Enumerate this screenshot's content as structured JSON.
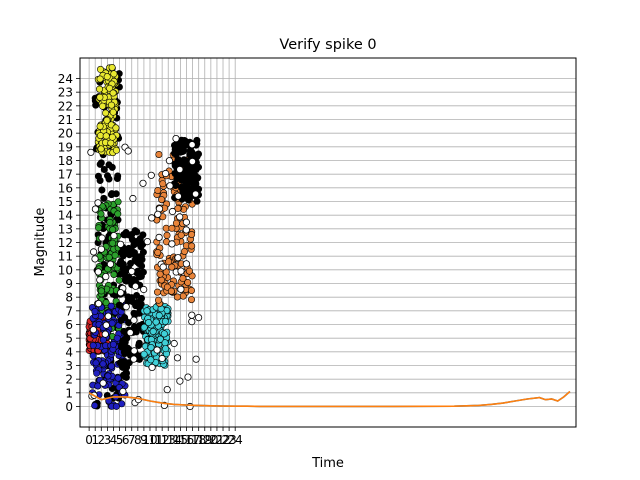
{
  "chart_data": {
    "type": "scatter",
    "title": "Verify spike 0",
    "xlabel": "Time",
    "ylabel": "Magnitude",
    "xlim": [
      -1.5,
      80
    ],
    "ylim": [
      -1.5,
      25.5
    ],
    "x_ticks": [
      "0",
      "1",
      "2",
      "3",
      "4",
      "5",
      "6",
      "7",
      "8",
      "9",
      "10",
      "11",
      "12",
      "13",
      "14",
      "15",
      "16",
      "17",
      "18",
      "19",
      "20",
      "21",
      "22",
      "23",
      "24"
    ],
    "y_ticks": [
      "0",
      "1",
      "2",
      "3",
      "4",
      "5",
      "6",
      "7",
      "8",
      "9",
      "10",
      "11",
      "12",
      "13",
      "14",
      "15",
      "16",
      "17",
      "18",
      "19",
      "20",
      "21",
      "22",
      "23",
      "24"
    ],
    "grid": true,
    "colors": {
      "black": "#000000",
      "yellow": "#e8e830",
      "green": "#2ca02c",
      "red": "#d62728",
      "blue": "#1f1fbf",
      "cyan": "#40d0d8",
      "orange": "#e8843a",
      "line": "#ff7f0e",
      "line2": "#1f77b4"
    },
    "clusters": [
      {
        "color": "black",
        "x": [
          1,
          5
        ],
        "y": [
          0,
          24.5
        ]
      },
      {
        "color": "yellow",
        "x": [
          1.5,
          4.5
        ],
        "y": [
          18.5,
          25
        ]
      },
      {
        "color": "green",
        "x": [
          1.5,
          5
        ],
        "y": [
          4,
          15
        ]
      },
      {
        "color": "red",
        "x": [
          0,
          3
        ],
        "y": [
          4,
          6.5
        ]
      },
      {
        "color": "blue",
        "x": [
          0.5,
          6
        ],
        "y": [
          0,
          7.5
        ]
      },
      {
        "color": "black",
        "x": [
          5,
          9
        ],
        "y": [
          2,
          13
        ]
      },
      {
        "color": "cyan",
        "x": [
          9,
          13
        ],
        "y": [
          3,
          7.5
        ]
      },
      {
        "color": "orange",
        "x": [
          11,
          17
        ],
        "y": [
          7.5,
          18.5
        ]
      },
      {
        "color": "black",
        "x": [
          14,
          18
        ],
        "y": [
          15,
          19.5
        ]
      }
    ],
    "series": [
      {
        "x": [
          0,
          2,
          4,
          6,
          8,
          10,
          12,
          14,
          16,
          18,
          20,
          22,
          24,
          26,
          28,
          30,
          34,
          40,
          50,
          60,
          62,
          64,
          66,
          68,
          70,
          72,
          74,
          75,
          76,
          77,
          78,
          79
        ],
        "y": [
          1.0,
          0.5,
          0.7,
          0.7,
          0.6,
          0.4,
          0.25,
          0.15,
          0.1,
          0.08,
          0.05,
          0.03,
          0.02,
          0.02,
          0.01,
          0.01,
          0.01,
          0.01,
          0.01,
          0.02,
          0.05,
          0.08,
          0.15,
          0.25,
          0.4,
          0.55,
          0.65,
          0.5,
          0.55,
          0.4,
          0.7,
          1.1
        ]
      }
    ]
  }
}
